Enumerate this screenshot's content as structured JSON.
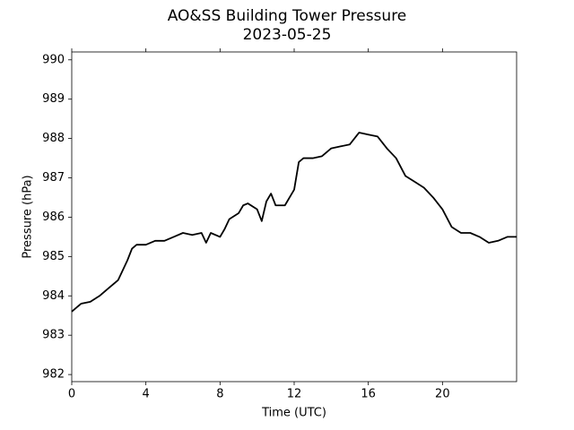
{
  "chart_data": {
    "type": "line",
    "title": "AO&SS Building Tower Pressure",
    "subtitle": "2023-05-25",
    "x_label": "Time (UTC)",
    "y_label": "Pressure (hPa)",
    "x": [
      0,
      0.25,
      0.5,
      1,
      1.5,
      2,
      2.5,
      3,
      3.25,
      3.5,
      4,
      4.5,
      5,
      5.5,
      6,
      6.5,
      7,
      7.25,
      7.5,
      8,
      8.25,
      8.5,
      9,
      9.25,
      9.5,
      10,
      10.25,
      10.5,
      10.75,
      11,
      11.5,
      12,
      12.25,
      12.5,
      13,
      13.5,
      14,
      14.5,
      15,
      15.5,
      16,
      16.5,
      17,
      17.5,
      18,
      18.5,
      19,
      19.5,
      20,
      20.5,
      21,
      21.5,
      22,
      22.5,
      23,
      23.5,
      24
    ],
    "series": [
      {
        "color": "#000000",
        "values": [
          983.6,
          983.7,
          983.8,
          983.85,
          984.0,
          984.2,
          984.4,
          984.9,
          985.2,
          985.3,
          985.3,
          985.4,
          985.4,
          985.5,
          985.6,
          985.55,
          985.6,
          985.35,
          985.6,
          985.5,
          985.7,
          985.95,
          986.1,
          986.3,
          986.35,
          986.2,
          985.9,
          986.4,
          986.6,
          986.3,
          986.3,
          986.7,
          987.4,
          987.5,
          987.5,
          987.55,
          987.75,
          987.8,
          987.85,
          988.15,
          988.1,
          988.05,
          987.75,
          987.5,
          987.05,
          986.9,
          986.75,
          986.5,
          986.2,
          985.75,
          985.6,
          985.6,
          985.5,
          985.35,
          985.4,
          985.5,
          985.5
        ]
      }
    ],
    "xlim": [
      0,
      24
    ],
    "xticks": [
      0,
      4,
      8,
      12,
      16,
      20
    ],
    "ylim": [
      981.82,
      990.2
    ],
    "yticks": [
      982,
      983,
      984,
      985,
      986,
      987,
      988,
      989,
      990
    ]
  }
}
